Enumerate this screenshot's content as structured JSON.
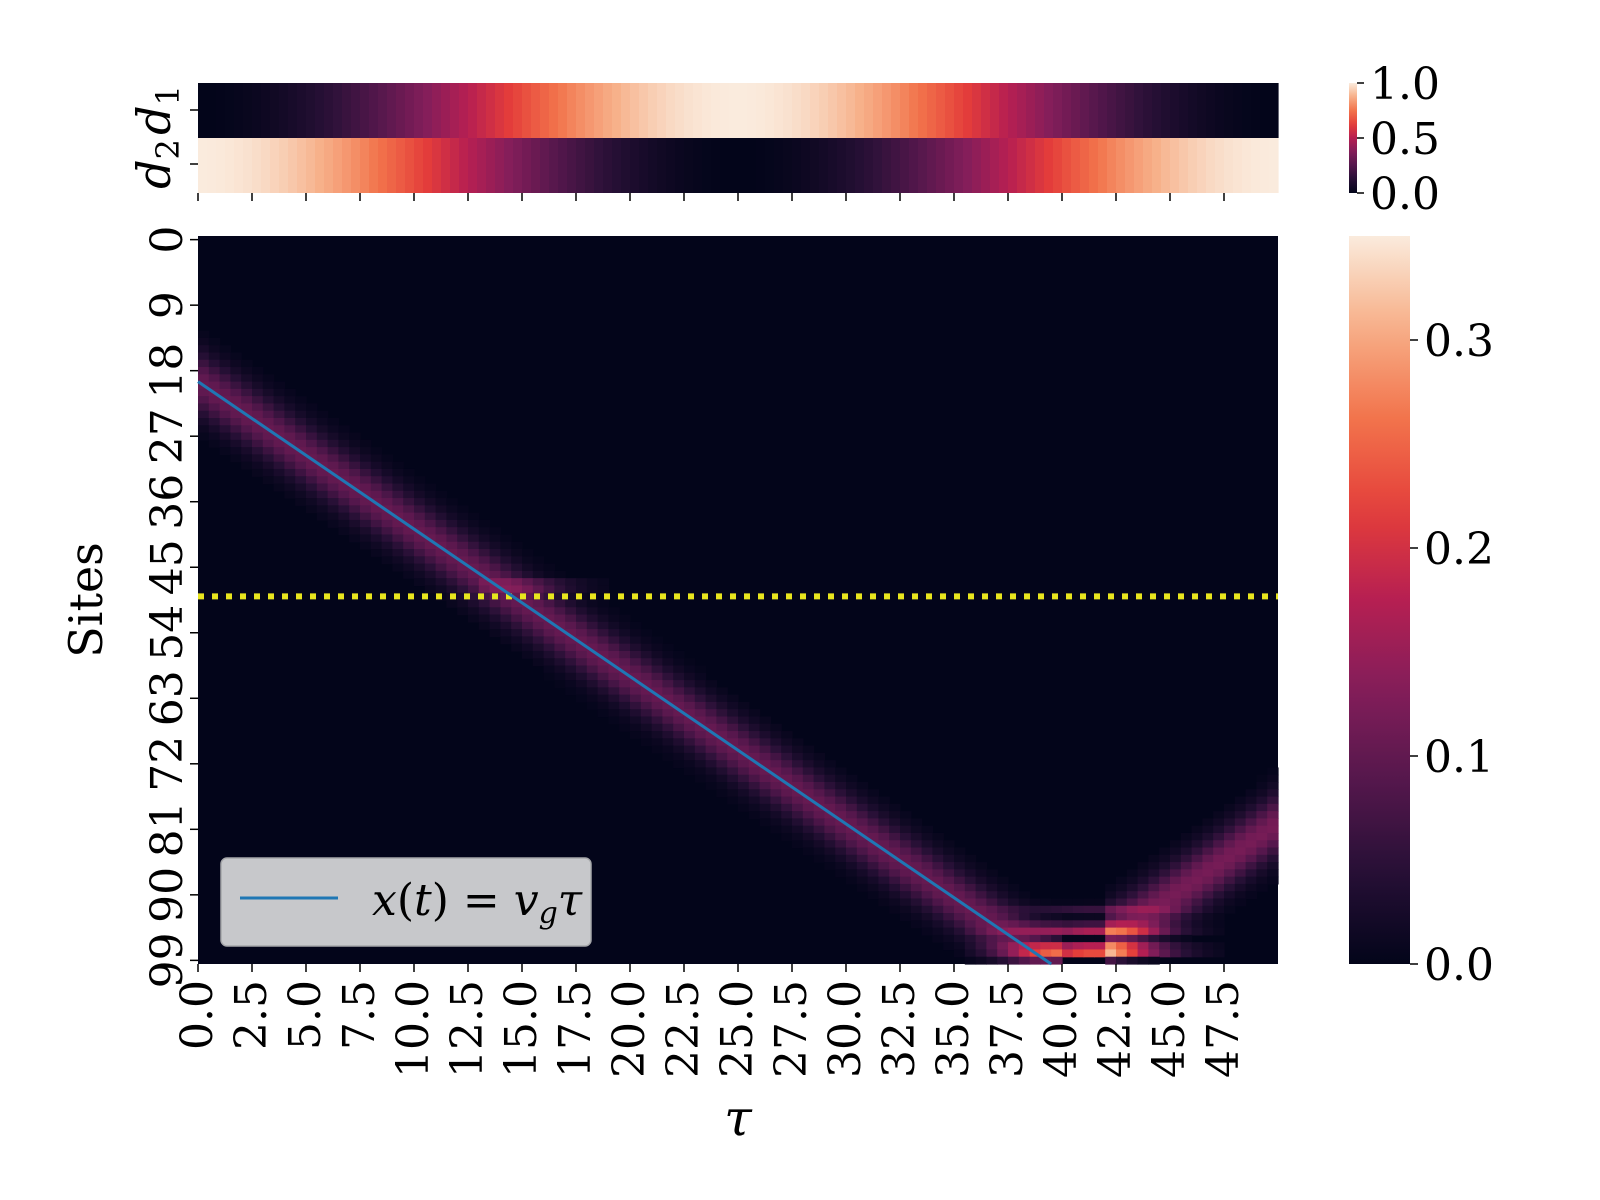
{
  "chart_data": [
    {
      "type": "heatmap",
      "panel": "top",
      "rows": [
        "d_1",
        "d_2"
      ],
      "row_labels": [
        {
          "main": "d",
          "sub": "1"
        },
        {
          "main": "d",
          "sub": "2"
        }
      ],
      "tau_range": [
        0,
        50
      ],
      "series": [
        {
          "name": "d_1",
          "profile": "sin^2(pi*tau/50)"
        },
        {
          "name": "d_2",
          "profile": "cos^2(pi*tau/50)"
        }
      ],
      "colorbar": {
        "min": 0.0,
        "max": 1.0,
        "ticks": [
          "0.0",
          "0.5",
          "1.0"
        ],
        "colormap": "rocket"
      }
    },
    {
      "type": "heatmap",
      "panel": "bottom",
      "xlabel": "τ",
      "ylabel": "Sites",
      "x_ticks": [
        "0.0",
        "2.5",
        "5.0",
        "7.5",
        "10.0",
        "12.5",
        "15.0",
        "17.5",
        "20.0",
        "22.5",
        "25.0",
        "27.5",
        "30.0",
        "32.5",
        "35.0",
        "37.5",
        "40.0",
        "42.5",
        "45.0",
        "47.5"
      ],
      "y_ticks": [
        "0",
        "9",
        "18",
        "27",
        "36",
        "45",
        "54",
        "63",
        "72",
        "81",
        "90",
        "99"
      ],
      "xlim": [
        0,
        50
      ],
      "ylim": [
        0,
        100
      ],
      "lines": [
        {
          "name": "x(t) = v_g τ",
          "kind": "line",
          "color": "#1f77b4",
          "points": [
            [
              0,
              20
            ],
            [
              39.5,
              100
            ]
          ]
        },
        {
          "name": "",
          "kind": "dotted-horizontal",
          "color": "#e8e51e",
          "y": 49.5
        }
      ],
      "legend": {
        "position": "lower-left",
        "entry": {
          "pre": "x",
          "mid1": "(",
          "mid2": "t",
          "mid3": ") = ",
          "v": "v",
          "sub": "g",
          "post": "τ"
        }
      },
      "colorbar": {
        "min": 0.0,
        "max": 0.35,
        "ticks": [
          "0.0",
          "0.1",
          "0.2",
          "0.3"
        ],
        "colormap": "rocket"
      }
    }
  ]
}
